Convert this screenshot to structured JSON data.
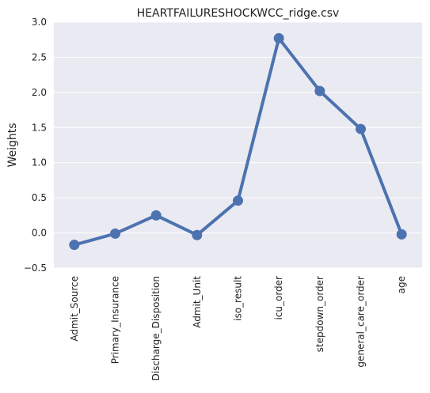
{
  "chart_data": {
    "type": "line",
    "title": "HEARTFAILURESHOCKWCC_ridge.csv",
    "xlabel": "",
    "ylabel": "Weights",
    "categories": [
      "Admit_Source",
      "Primary_Insurance",
      "Discharge_Disposition",
      "Admit_Unit",
      "iso_result",
      "icu_order",
      "stepdown_order",
      "general_care_order",
      "age"
    ],
    "values": [
      -0.17,
      -0.01,
      0.25,
      -0.03,
      0.46,
      2.77,
      2.02,
      1.48,
      -0.02
    ],
    "ylim": [
      -0.5,
      3.0
    ],
    "yticks": [
      -0.5,
      0.0,
      0.5,
      1.0,
      1.5,
      2.0,
      2.5,
      3.0
    ],
    "ytick_labels": [
      "−0.5",
      "0.0",
      "0.5",
      "1.0",
      "1.5",
      "2.0",
      "2.5",
      "3.0"
    ],
    "grid": true,
    "colors": {
      "series": "#4c72b0",
      "plot_background": "#eaeaf2",
      "gridline": "#ffffff"
    }
  }
}
